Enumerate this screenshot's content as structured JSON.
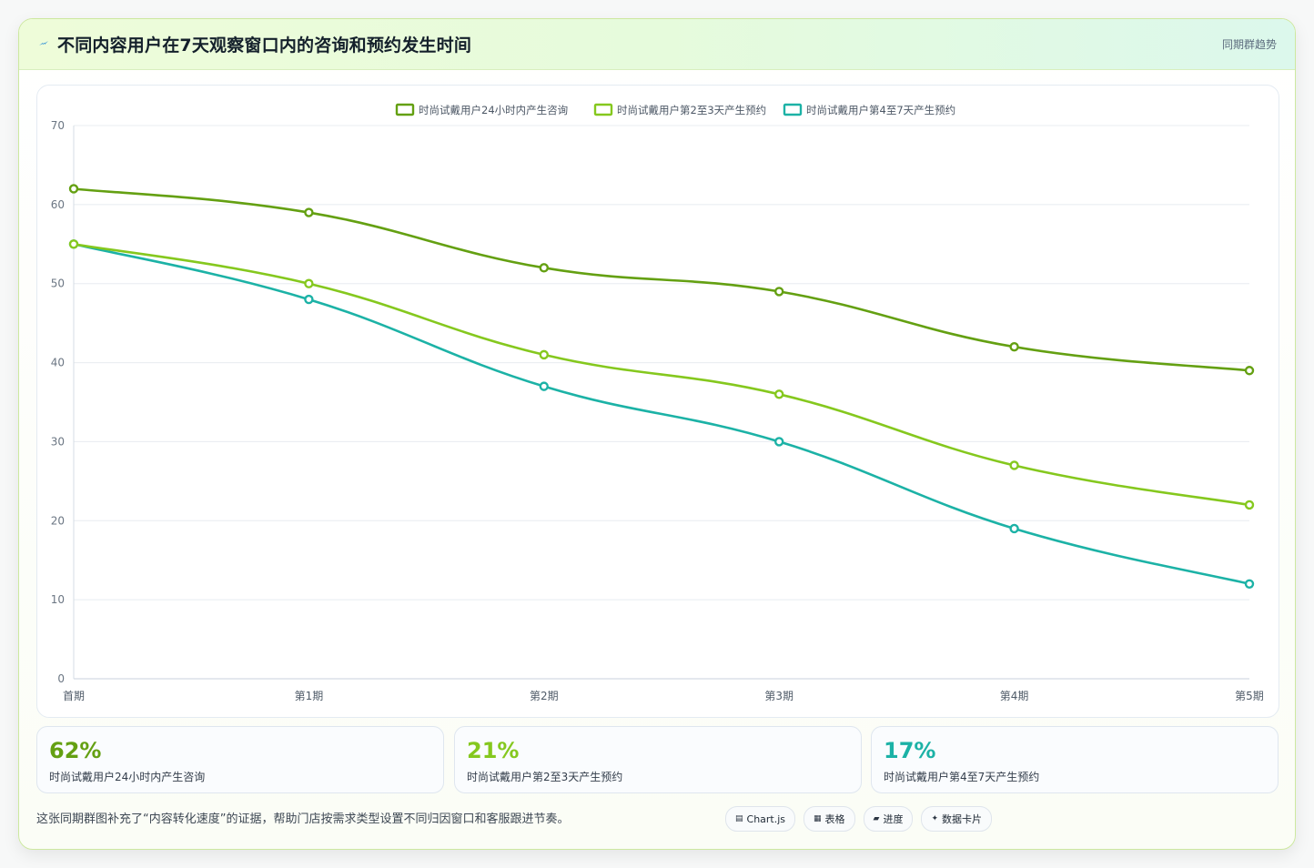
{
  "header": {
    "title": "不同内容用户在7天观察窗口内的咨询和预约发生时间",
    "tag": "同期群趋势",
    "icon": "lightning-icon"
  },
  "colors": {
    "series1": "#64a012",
    "series2": "#85c81e",
    "series3": "#1cb2a6"
  },
  "chart_data": {
    "type": "line",
    "categories": [
      "首期",
      "第1期",
      "第2期",
      "第3期",
      "第4期",
      "第5期"
    ],
    "series": [
      {
        "name": "时尚试戴用户24小时内产生咨询",
        "values": [
          62,
          59,
          52,
          49,
          42,
          39
        ],
        "color": "#64a012"
      },
      {
        "name": "时尚试戴用户第2至3天产生预约",
        "values": [
          55,
          50,
          41,
          36,
          27,
          22
        ],
        "color": "#85c81e"
      },
      {
        "name": "时尚试戴用户第4至7天产生预约",
        "values": [
          55,
          48,
          37,
          30,
          19,
          12
        ],
        "color": "#1cb2a6"
      }
    ],
    "ylim": [
      0,
      70
    ],
    "yticks": [
      "0",
      "10",
      "20",
      "30",
      "40",
      "50",
      "60",
      "70"
    ],
    "grid": true,
    "legend": "top-center",
    "smooth": true
  },
  "stats": [
    {
      "value": "62%",
      "label": "时尚试戴用户24小时内产生咨询",
      "color": "#64a012"
    },
    {
      "value": "21%",
      "label": "时尚试戴用户第2至3天产生预约",
      "color": "#85c81e"
    },
    {
      "value": "17%",
      "label": "时尚试戴用户第4至7天产生预约",
      "color": "#1cb2a6"
    }
  ],
  "footnote": "这张同期群图补充了“内容转化速度”的证据，帮助门店按需求类型设置不同归因窗口和客服跟进节奏。",
  "tags": [
    {
      "icon": "▤",
      "icon_name": "chart-icon",
      "label": "Chart.js"
    },
    {
      "icon": "▦",
      "icon_name": "table-icon",
      "label": "表格"
    },
    {
      "icon": "▰",
      "icon_name": "progress-icon",
      "label": "进度"
    },
    {
      "icon": "✦",
      "icon_name": "sparkle-icon",
      "label": "数据卡片"
    }
  ]
}
